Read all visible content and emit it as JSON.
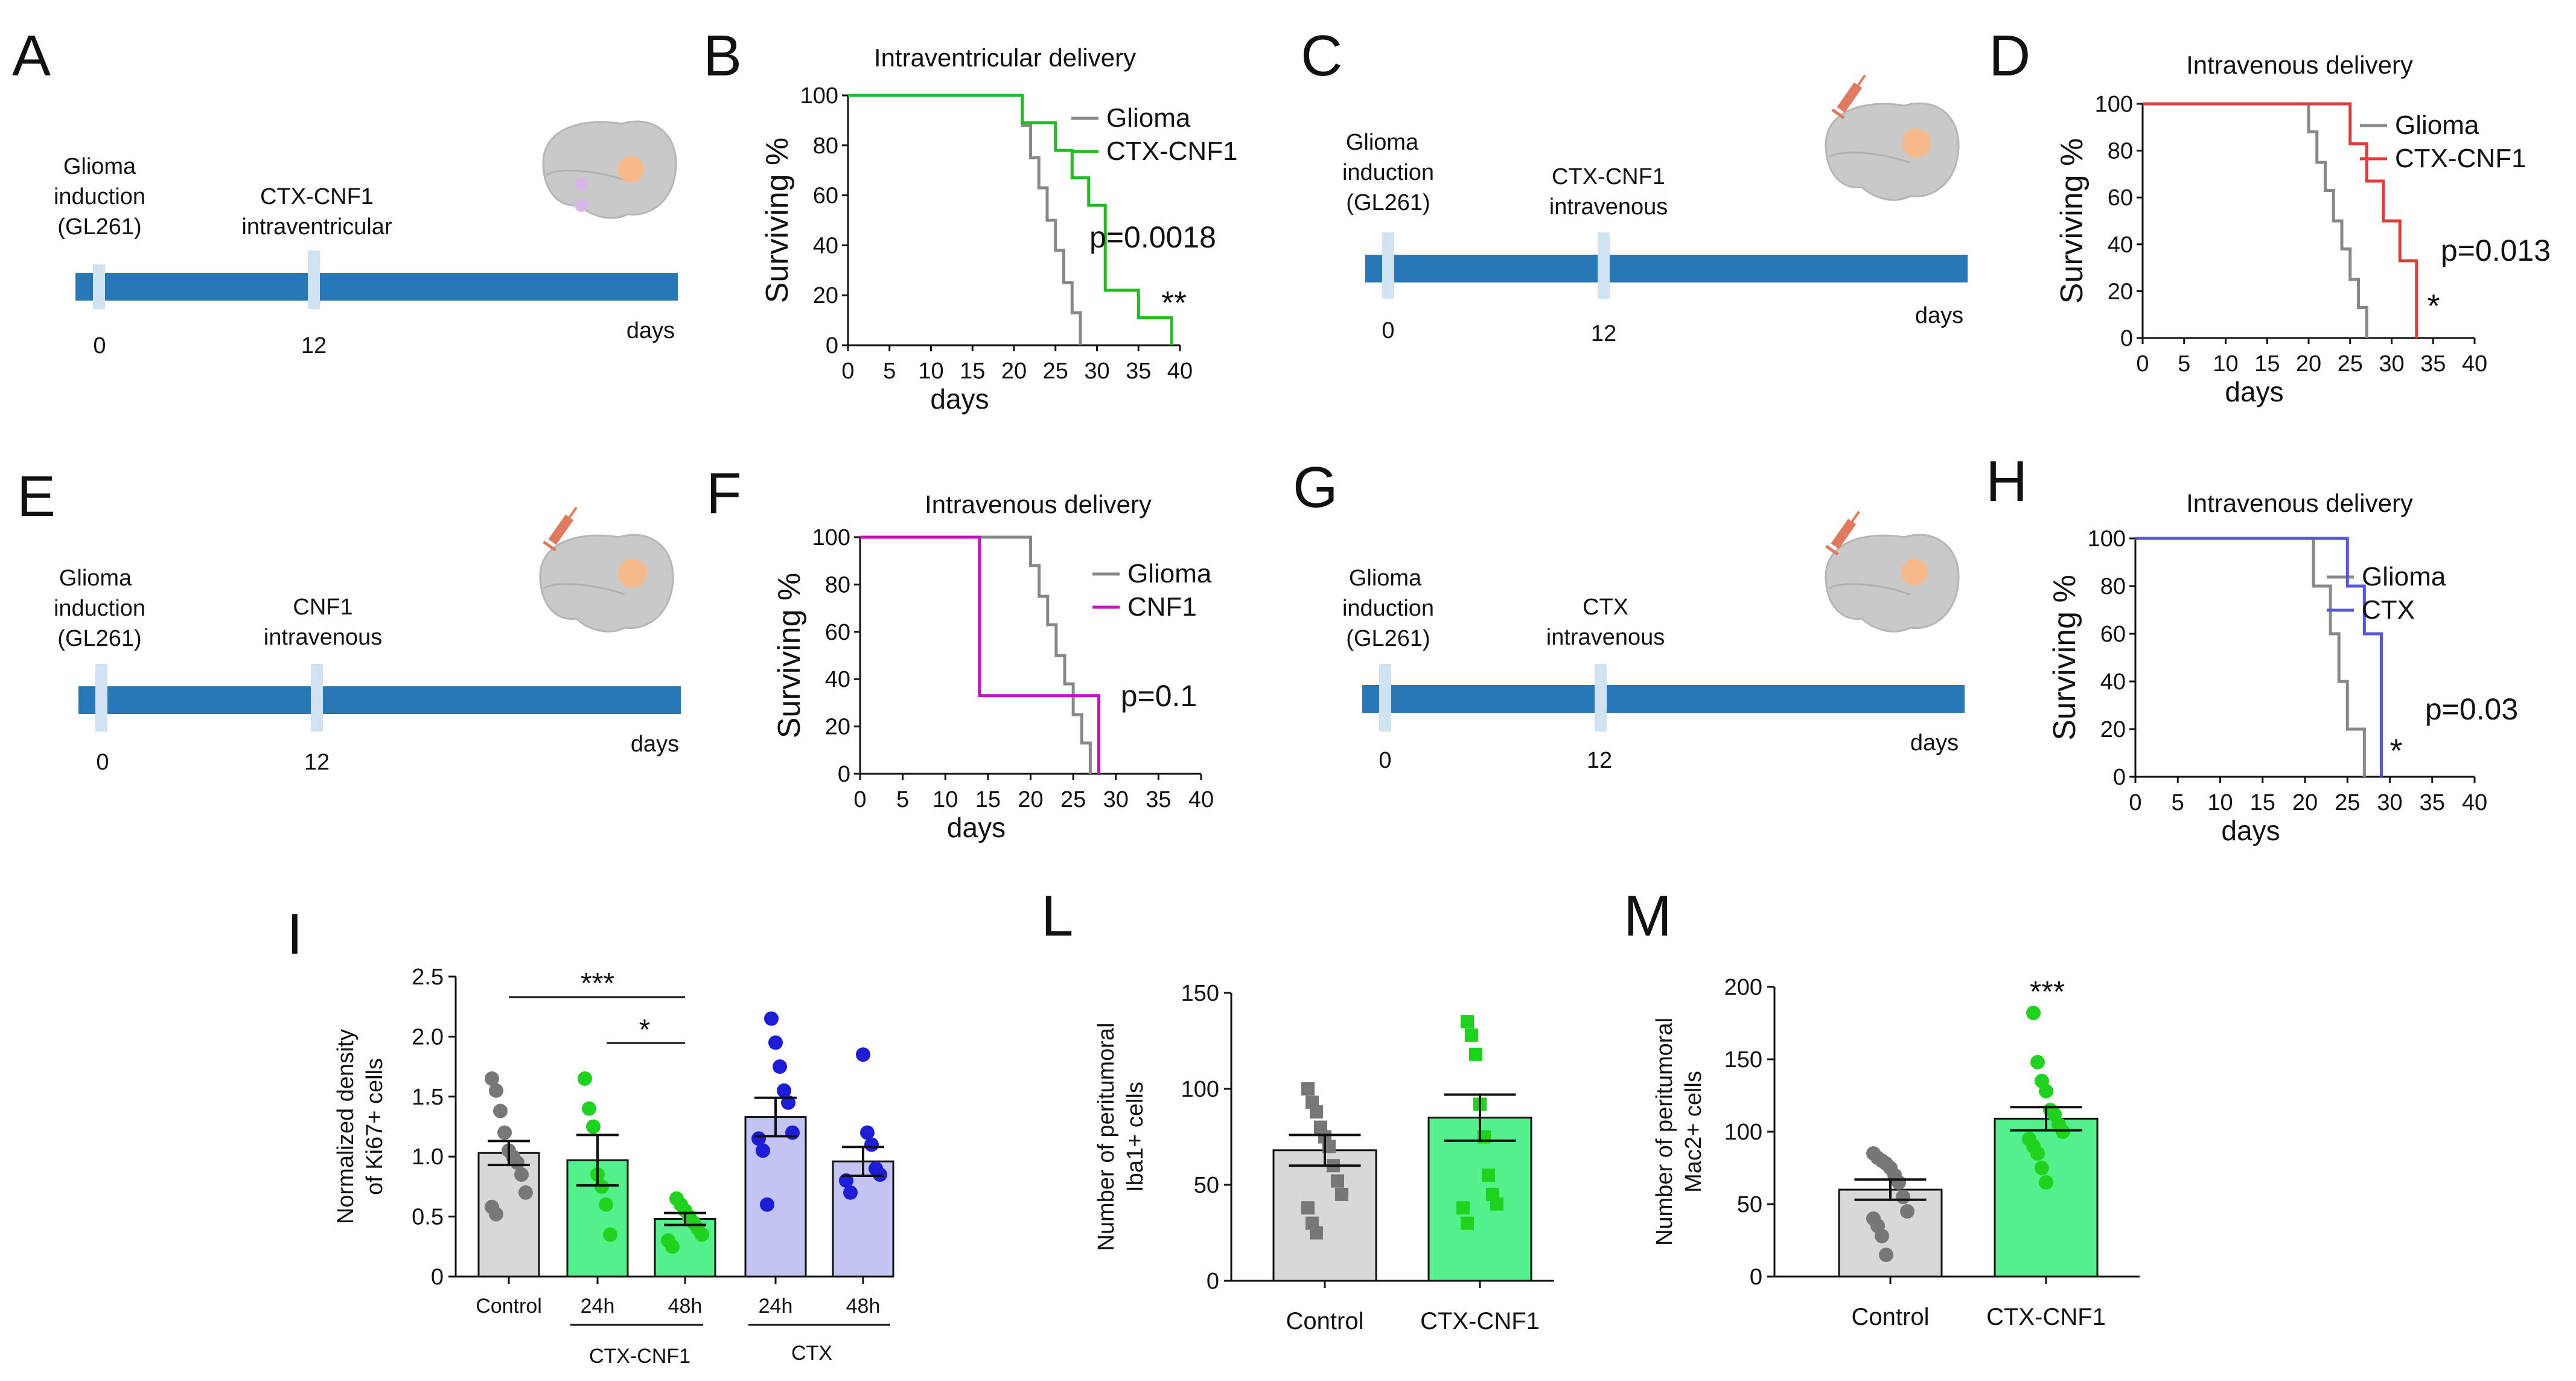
{
  "colors": {
    "glioma": "#888888",
    "ctx_cnf1": "#22bb22",
    "ctx_cnf1_red": "#e43a3a",
    "cnf1": "#c214c2",
    "ctx": "#5555dd",
    "timeline": "#2878b8",
    "timeline_mark": "#cfe3f3",
    "bar_grey": "#d8d8d8",
    "bar_green": "#54f08c",
    "bar_violet": "#c4c4f4",
    "dot_grey": "#777777",
    "dot_green": "#1ed21e",
    "dot_blue": "#1d1dd8",
    "syringe": "#e07a5f",
    "brain": "#c9c9c9",
    "tumor": "#f6b98a"
  },
  "panel_letters": {
    "A": "A",
    "B": "B",
    "C": "C",
    "D": "D",
    "E": "E",
    "F": "F",
    "G": "G",
    "H": "H",
    "I": "I",
    "L": "L",
    "M": "M"
  },
  "timelines": {
    "A": {
      "induction": [
        "Glioma",
        "induction",
        "(GL261)"
      ],
      "treatment": [
        "CTX-CNF1",
        "intraventricular"
      ],
      "tick0": "0",
      "tick12": "12",
      "days": "days"
    },
    "C": {
      "induction": [
        "Glioma",
        "induction",
        "(GL261)"
      ],
      "treatment": [
        "CTX-CNF1",
        "intravenous"
      ],
      "tick0": "0",
      "tick12": "12",
      "days": "days"
    },
    "E": {
      "induction": [
        "Glioma",
        "induction",
        "(GL261)"
      ],
      "treatment": [
        "CNF1",
        "intravenous"
      ],
      "tick0": "0",
      "tick12": "12",
      "days": "days"
    },
    "G": {
      "induction": [
        "Glioma",
        "induction",
        "(GL261)"
      ],
      "treatment": [
        "CTX",
        "intravenous"
      ],
      "tick0": "0",
      "tick12": "12",
      "days": "days"
    }
  },
  "chart_data": [
    {
      "id": "B",
      "type": "line",
      "step": true,
      "title": "Intraventricular delivery",
      "xlabel": "days",
      "ylabel": "Surviving %",
      "xlim": [
        0,
        40
      ],
      "ylim": [
        0,
        100
      ],
      "xticks": [
        "0",
        "5",
        "10",
        "15",
        "20",
        "25",
        "30",
        "35",
        "40"
      ],
      "yticks": [
        "0",
        "20",
        "40",
        "60",
        "80",
        "100"
      ],
      "series": [
        {
          "name": "Glioma",
          "color": "#888888",
          "x": [
            0,
            21,
            22,
            23,
            24,
            25,
            26,
            27,
            28
          ],
          "y": [
            100,
            88,
            75,
            63,
            50,
            38,
            25,
            13,
            0
          ]
        },
        {
          "name": "CTX-CNF1",
          "color": "#22bb22",
          "x": [
            0,
            21,
            25,
            27,
            29,
            31,
            35,
            39
          ],
          "y": [
            100,
            89,
            78,
            67,
            56,
            22,
            11,
            0
          ]
        }
      ],
      "annotations": [
        "p=0.0018",
        "**"
      ]
    },
    {
      "id": "D",
      "type": "line",
      "step": true,
      "title": "Intravenous delivery",
      "xlabel": "days",
      "ylabel": "Surviving %",
      "xlim": [
        0,
        40
      ],
      "ylim": [
        0,
        100
      ],
      "xticks": [
        "0",
        "5",
        "10",
        "15",
        "20",
        "25",
        "30",
        "35",
        "40"
      ],
      "yticks": [
        "0",
        "20",
        "40",
        "60",
        "80",
        "100"
      ],
      "series": [
        {
          "name": "Glioma",
          "color": "#888888",
          "x": [
            0,
            20,
            21,
            22,
            23,
            24,
            25,
            26,
            27
          ],
          "y": [
            100,
            88,
            75,
            63,
            50,
            38,
            25,
            13,
            0
          ]
        },
        {
          "name": "CTX-CNF1",
          "color": "#e43a3a",
          "x": [
            0,
            25,
            27,
            29,
            31,
            33
          ],
          "y": [
            100,
            83,
            67,
            50,
            33,
            0
          ]
        }
      ],
      "annotations": [
        "p=0.013",
        "*"
      ]
    },
    {
      "id": "F",
      "type": "line",
      "step": true,
      "title": "Intravenous delivery",
      "xlabel": "days",
      "ylabel": "Surviving %",
      "xlim": [
        0,
        40
      ],
      "ylim": [
        0,
        100
      ],
      "xticks": [
        "0",
        "5",
        "10",
        "15",
        "20",
        "25",
        "30",
        "35",
        "40"
      ],
      "yticks": [
        "0",
        "20",
        "40",
        "60",
        "80",
        "100"
      ],
      "series": [
        {
          "name": "Glioma",
          "color": "#888888",
          "x": [
            0,
            20,
            21,
            22,
            23,
            24,
            25,
            26,
            27
          ],
          "y": [
            100,
            88,
            75,
            63,
            50,
            38,
            25,
            13,
            0
          ]
        },
        {
          "name": "CNF1",
          "color": "#c214c2",
          "x": [
            0,
            14,
            28
          ],
          "y": [
            100,
            33,
            0
          ]
        }
      ],
      "annotations": [
        "p=0.1"
      ]
    },
    {
      "id": "H",
      "type": "line",
      "step": true,
      "title": "Intravenous delivery",
      "xlabel": "days",
      "ylabel": "Surviving %",
      "xlim": [
        0,
        40
      ],
      "ylim": [
        0,
        100
      ],
      "xticks": [
        "0",
        "5",
        "10",
        "15",
        "20",
        "25",
        "30",
        "35",
        "40"
      ],
      "yticks": [
        "0",
        "20",
        "40",
        "60",
        "80",
        "100"
      ],
      "series": [
        {
          "name": "Glioma",
          "color": "#888888",
          "x": [
            0,
            21,
            22,
            23,
            24,
            25,
            26,
            27
          ],
          "y": [
            100,
            80,
            80,
            60,
            40,
            20,
            20,
            0
          ]
        },
        {
          "name": "CTX",
          "color": "#5555dd",
          "x": [
            0,
            25,
            27,
            29
          ],
          "y": [
            100,
            80,
            60,
            0
          ]
        }
      ],
      "annotations": [
        "p=0.03",
        "*"
      ]
    },
    {
      "id": "I",
      "type": "bar",
      "ylabel": [
        "Normalized density",
        "of Ki67+ cells"
      ],
      "ylim": [
        0,
        2.5
      ],
      "yticks": [
        "0",
        "0.5",
        "1.0",
        "1.5",
        "2.0",
        "2.5"
      ],
      "categories": [
        "Control",
        "24h",
        "48h",
        "24h",
        "48h"
      ],
      "groups": [
        "CTX-CNF1",
        "CTX"
      ],
      "values": [
        1.03,
        0.97,
        0.48,
        1.33,
        0.96
      ],
      "sem": [
        0.1,
        0.21,
        0.05,
        0.16,
        0.12
      ],
      "bar_colors": [
        "#d8d8d8",
        "#54f08c",
        "#54f08c",
        "#c4c4f4",
        "#c4c4f4"
      ],
      "point_colors": [
        "#777777",
        "#1ed21e",
        "#1ed21e",
        "#1d1dd8",
        "#1d1dd8"
      ],
      "point_shapes": [
        "circle",
        "circle",
        "circle",
        "circle",
        "circle"
      ],
      "points": [
        [
          1.65,
          1.55,
          1.38,
          1.2,
          1.05,
          1.0,
          0.95,
          0.85,
          0.7,
          0.58,
          0.52
        ],
        [
          1.65,
          1.4,
          1.25,
          0.85,
          0.75,
          0.6,
          0.35
        ],
        [
          0.65,
          0.6,
          0.55,
          0.5,
          0.45,
          0.4,
          0.35,
          0.3,
          0.25
        ],
        [
          2.15,
          1.95,
          1.75,
          1.55,
          1.45,
          1.2,
          1.15,
          1.05,
          0.6
        ],
        [
          1.85,
          1.2,
          1.1,
          0.9,
          0.85,
          0.8,
          0.7
        ]
      ],
      "significance": [
        "***",
        "*"
      ]
    },
    {
      "id": "L",
      "type": "bar",
      "ylabel": [
        "Number of peritumoral",
        "Iba1+  cells"
      ],
      "ylim": [
        0,
        150
      ],
      "yticks": [
        "0",
        "50",
        "100",
        "150"
      ],
      "categories": [
        "Control",
        "CTX-CNF1"
      ],
      "values": [
        68,
        85
      ],
      "sem": [
        8,
        12
      ],
      "bar_colors": [
        "#d8d8d8",
        "#54f08c"
      ],
      "point_colors": [
        "#777777",
        "#1ed21e"
      ],
      "point_shapes": [
        "square",
        "square"
      ],
      "points": [
        [
          100,
          93,
          88,
          80,
          75,
          70,
          60,
          52,
          45,
          38,
          30,
          25
        ],
        [
          135,
          128,
          118,
          92,
          75,
          55,
          45,
          40,
          38,
          30
        ]
      ]
    },
    {
      "id": "M",
      "type": "bar",
      "ylabel": [
        "Number of peritumoral",
        "Mac2+  cells"
      ],
      "ylim": [
        0,
        200
      ],
      "yticks": [
        "0",
        "50",
        "100",
        "150",
        "200"
      ],
      "categories": [
        "Control",
        "CTX-CNF1"
      ],
      "values": [
        60,
        109
      ],
      "sem": [
        7,
        8
      ],
      "bar_colors": [
        "#d8d8d8",
        "#54f08c"
      ],
      "point_colors": [
        "#777777",
        "#1ed21e"
      ],
      "point_shapes": [
        "circle",
        "circle"
      ],
      "points": [
        [
          85,
          82,
          80,
          78,
          75,
          70,
          65,
          55,
          45,
          40,
          35,
          28,
          15
        ],
        [
          182,
          148,
          135,
          128,
          115,
          112,
          105,
          100,
          95,
          90,
          85,
          75,
          65
        ]
      ],
      "significance": [
        "***"
      ]
    }
  ]
}
